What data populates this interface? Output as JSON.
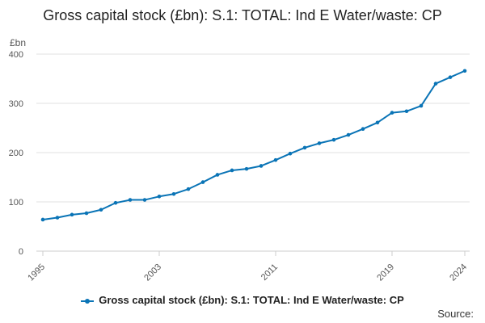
{
  "page": {
    "title": "Gross capital stock (£bn): S.1: TOTAL: Ind E Water/waste: CP",
    "source_label": "Source:"
  },
  "colors": {
    "series": "#0a74b6",
    "grid": "#e0e0e0",
    "axis_text": "#555555"
  },
  "chart_data": {
    "type": "line",
    "title": "Gross capital stock (£bn): S.1: TOTAL: Ind E Water/waste: CP",
    "xlabel": "",
    "ylabel": "£bn",
    "xlim": [
      1995,
      2024
    ],
    "ylim": [
      0,
      400
    ],
    "yticks": [
      0,
      100,
      200,
      300,
      400
    ],
    "xticks": [
      1995,
      2003,
      2011,
      2019,
      2024
    ],
    "series": [
      {
        "name": "Gross capital stock (£bn): S.1: TOTAL: Ind E Water/waste: CP",
        "x": [
          1995,
          1996,
          1997,
          1998,
          1999,
          2000,
          2001,
          2002,
          2003,
          2004,
          2005,
          2006,
          2007,
          2008,
          2009,
          2010,
          2011,
          2012,
          2013,
          2014,
          2015,
          2016,
          2017,
          2018,
          2019,
          2020,
          2021,
          2022,
          2023,
          2024
        ],
        "values": [
          64,
          68,
          74,
          77,
          84,
          98,
          104,
          104,
          111,
          116,
          126,
          140,
          155,
          164,
          167,
          173,
          185,
          198,
          210,
          219,
          226,
          236,
          248,
          261,
          281,
          284,
          295,
          340,
          353,
          366
        ]
      }
    ],
    "legend": "bottom-center",
    "grid": true
  }
}
